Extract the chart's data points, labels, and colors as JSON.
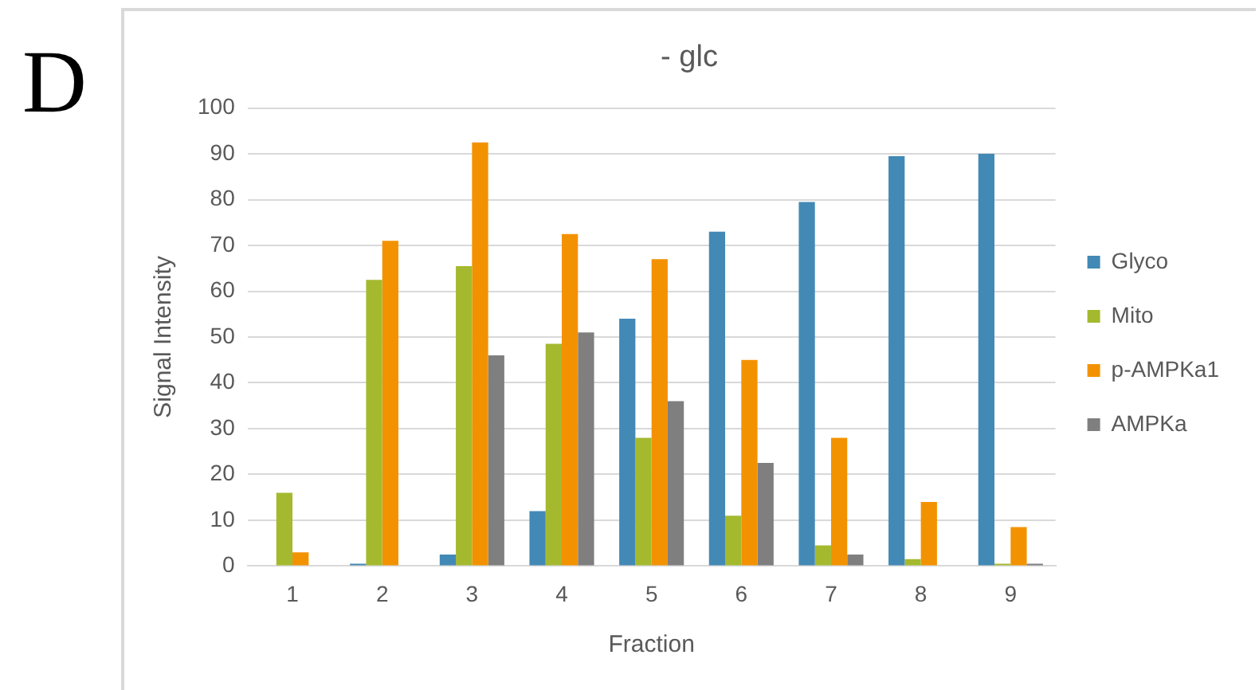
{
  "chart_data": {
    "type": "bar",
    "title": "- glc",
    "xlabel": "Fraction",
    "ylabel": "Signal Intensity",
    "annotations": [
      "D"
    ],
    "categories": [
      "1",
      "2",
      "3",
      "4",
      "5",
      "6",
      "7",
      "8",
      "9"
    ],
    "series": [
      {
        "name": "Glyco",
        "color": "#4389b5",
        "values": [
          0,
          0.5,
          2.5,
          12,
          54,
          73,
          79.5,
          89.5,
          90
        ]
      },
      {
        "name": "Mito",
        "color": "#a5b92e",
        "values": [
          16,
          62.5,
          65.5,
          48.5,
          28,
          11,
          4.5,
          1.5,
          0.5
        ]
      },
      {
        "name": "p-AMPKa1",
        "color": "#f39200",
        "values": [
          3,
          71,
          92.5,
          72.5,
          67,
          45,
          28,
          14,
          8.5
        ]
      },
      {
        "name": "AMPKa",
        "color": "#7f7f7f",
        "values": [
          0,
          0,
          46,
          51,
          36,
          22.5,
          2.5,
          0,
          0.5
        ]
      }
    ],
    "ylim": [
      0,
      100
    ],
    "yticks": [
      0,
      10,
      20,
      30,
      40,
      50,
      60,
      70,
      80,
      90,
      100
    ],
    "grid": "y",
    "legend": "right"
  }
}
